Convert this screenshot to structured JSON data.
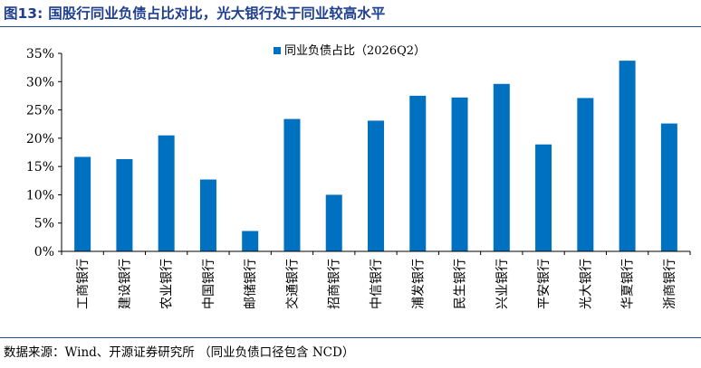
{
  "figure": {
    "number": "图13:",
    "title": "国股行同业负债占比对比，光大银行处于同业较高水平"
  },
  "source": "数据来源：Wind、开源证券研究所 （同业负债口径包含 NCD）",
  "chart_data": {
    "type": "bar",
    "categories": [
      "工商银行",
      "建设银行",
      "农业银行",
      "中国银行",
      "邮储银行",
      "交通银行",
      "招商银行",
      "中信银行",
      "浦发银行",
      "民生银行",
      "兴业银行",
      "平安银行",
      "光大银行",
      "华夏银行",
      "浙商银行"
    ],
    "series": [
      {
        "name": "同业负债占比（2026Q2）",
        "values": [
          16.7,
          16.3,
          20.5,
          12.7,
          3.6,
          23.4,
          10.0,
          23.1,
          27.5,
          27.2,
          29.6,
          18.9,
          27.1,
          33.7,
          22.6
        ]
      }
    ],
    "yticks": [
      "0%",
      "5%",
      "10%",
      "15%",
      "20%",
      "25%",
      "30%",
      "35%"
    ],
    "ylim": [
      0,
      35
    ],
    "legend_position": "top-center",
    "grid": false,
    "colors": {
      "bar": "#0070c0"
    }
  }
}
